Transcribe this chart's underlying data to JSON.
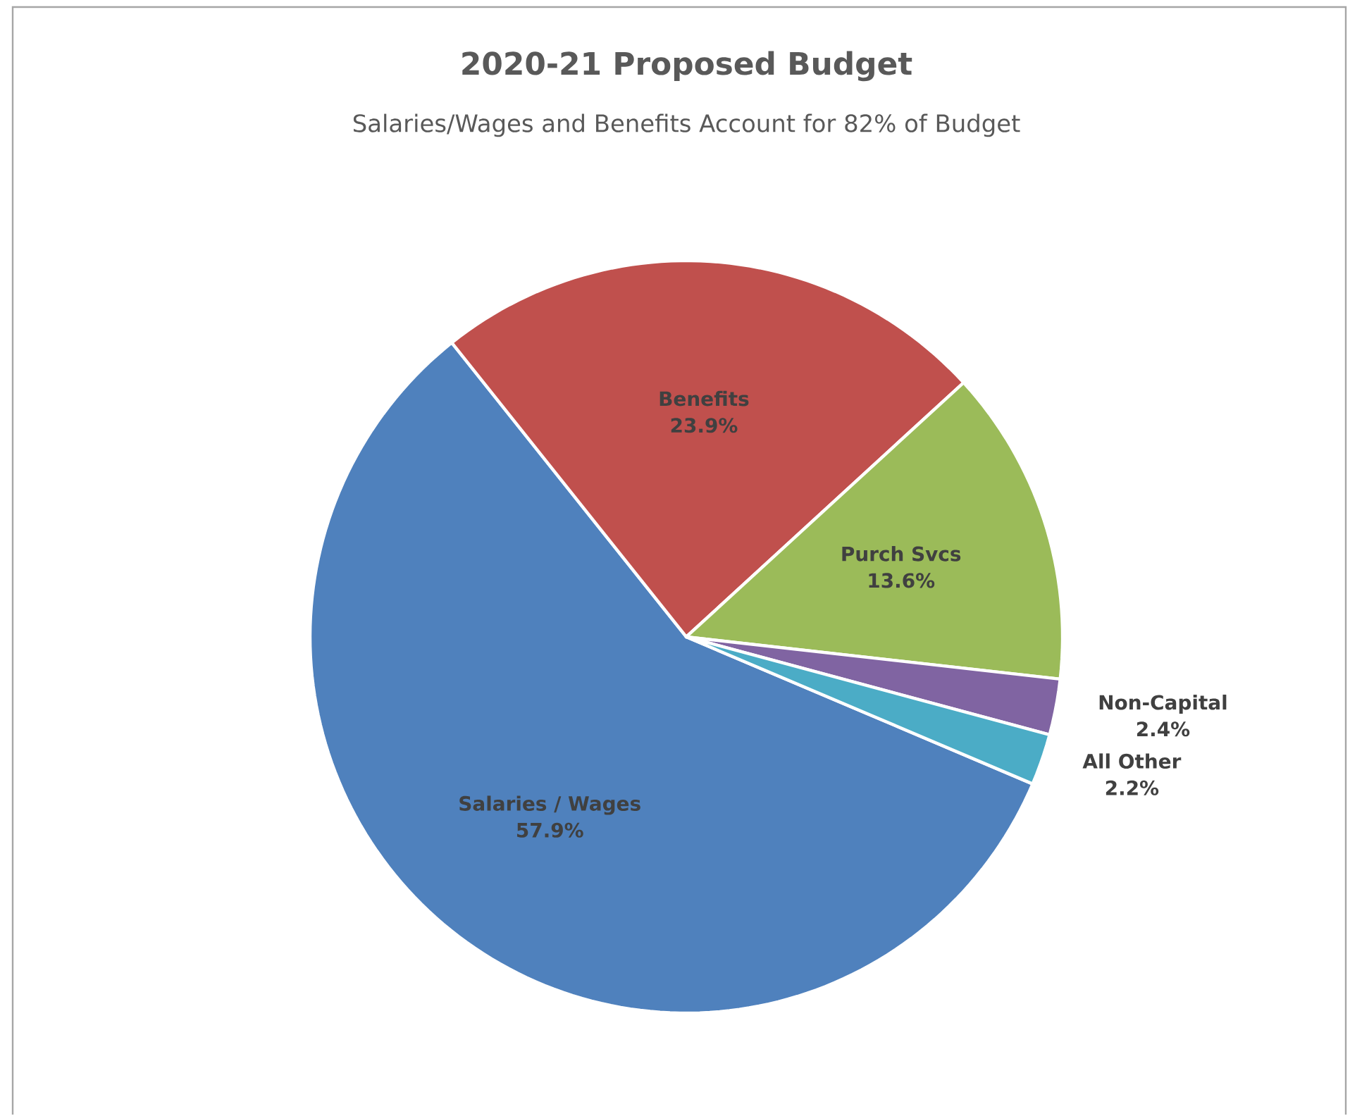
{
  "chart_data": {
    "type": "pie",
    "title": "2020-21 Proposed Budget",
    "subtitle": "Salaries/Wages and Benefits Account for 82% of Budget",
    "categories": [
      "Salaries / Wages",
      "Benefits",
      "Purch Svcs",
      "Non-Capital",
      "All Other"
    ],
    "values": [
      57.9,
      23.9,
      13.6,
      2.4,
      2.2
    ],
    "value_labels": [
      "57.9%",
      "23.9%",
      "13.6%",
      "2.4%",
      "2.2%"
    ],
    "colors": [
      "#4f81bd",
      "#c0504d",
      "#9bbb59",
      "#8064a2",
      "#4bacc6"
    ]
  }
}
